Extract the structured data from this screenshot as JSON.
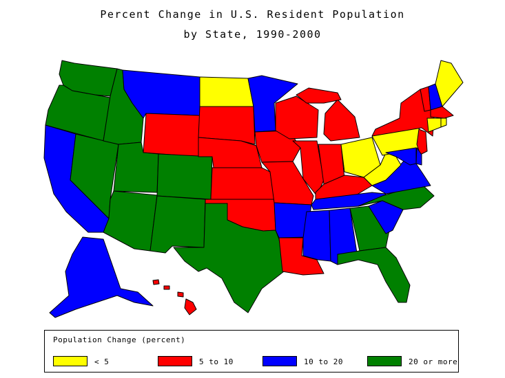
{
  "title_line1": "Percent Change in U.S. Resident Population",
  "title_line2": "by State, 1990-2000",
  "legend": {
    "title": "Population Change (percent)",
    "items": [
      {
        "label": "< 5",
        "color": "#ffff00"
      },
      {
        "label": "5 to 10",
        "color": "#ff0000"
      },
      {
        "label": "10 to 20",
        "color": "#0000ff"
      },
      {
        "label": "20 or more",
        "color": "#008000"
      }
    ]
  },
  "states": {
    "WA": "20 or more",
    "OR": "20 or more",
    "CA": "10 to 20",
    "NV": "20 or more",
    "ID": "20 or more",
    "MT": "10 to 20",
    "WY": "5 to 10",
    "UT": "20 or more",
    "AZ": "20 or more",
    "CO": "20 or more",
    "NM": "20 or more",
    "ND": "< 5",
    "SD": "5 to 10",
    "NE": "5 to 10",
    "KS": "5 to 10",
    "OK": "5 to 10",
    "TX": "20 or more",
    "MN": "10 to 20",
    "IA": "5 to 10",
    "MO": "5 to 10",
    "AR": "10 to 20",
    "LA": "5 to 10",
    "WI": "5 to 10",
    "IL": "5 to 10",
    "MI": "5 to 10",
    "IN": "5 to 10",
    "OH": "< 5",
    "KY": "5 to 10",
    "TN": "10 to 20",
    "MS": "10 to 20",
    "AL": "10 to 20",
    "GA": "20 or more",
    "FL": "20 or more",
    "SC": "10 to 20",
    "NC": "20 or more",
    "VA": "10 to 20",
    "WV": "< 5",
    "PA": "< 5",
    "NY": "5 to 10",
    "VT": "5 to 10",
    "NH": "10 to 20",
    "ME": "< 5",
    "MA": "5 to 10",
    "CT": "< 5",
    "RI": "< 5",
    "NJ": "5 to 10",
    "DE": "10 to 20",
    "MD": "10 to 20",
    "AK": "10 to 20",
    "HI": "5 to 10"
  }
}
